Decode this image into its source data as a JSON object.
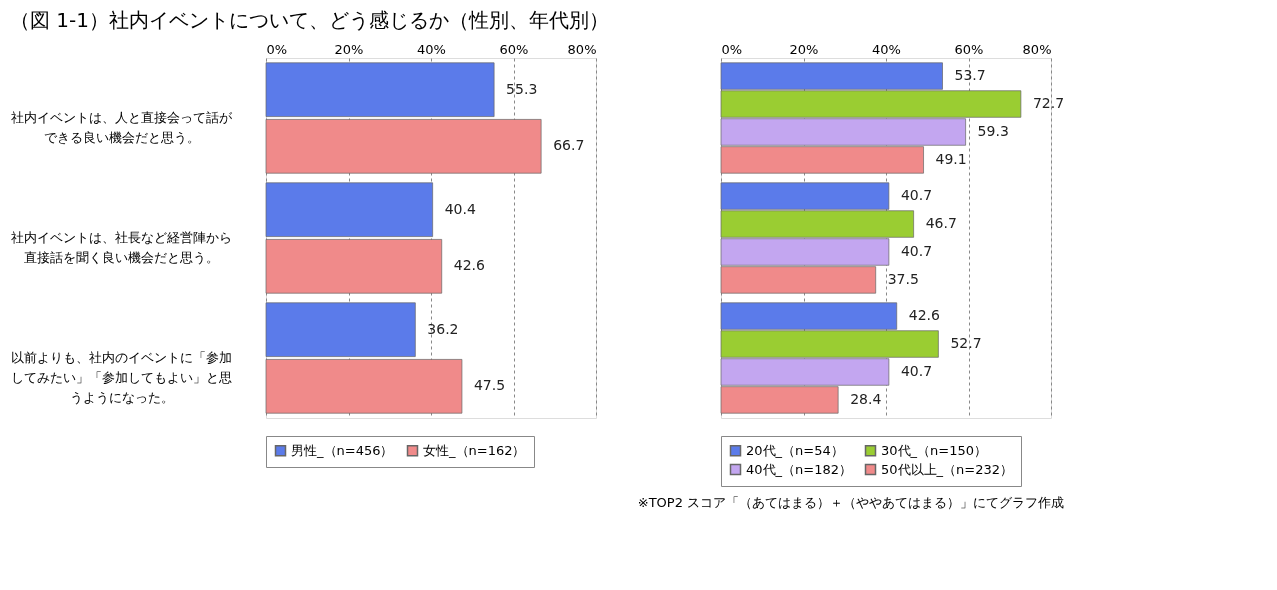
{
  "chart_data": [
    {
      "type": "bar",
      "orientation": "horizontal",
      "title": "（図 1-1）社内イベントについて、どう感じるか（性別、年代別）",
      "categories": [
        "社内イベントは、人と直接会って話ができる良い機会だと思う。",
        "社内イベントは、社長など経営陣から直接話を聞く良い機会だと思う。",
        "以前よりも、社内のイベントに「参加してみたい」「参加してもよい」と思うようになった。"
      ],
      "series": [
        {
          "name": "男性_（n=456）",
          "color": "#5b7bea",
          "values": [
            55.3,
            40.4,
            36.2
          ]
        },
        {
          "name": "女性_（n=162）",
          "color": "#f08a8a",
          "values": [
            66.7,
            42.6,
            47.5
          ]
        }
      ],
      "xlim": [
        0,
        80
      ],
      "xticks": [
        {
          "value": 0,
          "label": "0%"
        },
        {
          "value": 20,
          "label": "20%"
        },
        {
          "value": 40,
          "label": "40%"
        },
        {
          "value": 60,
          "label": "60%"
        },
        {
          "value": 80,
          "label": "80%"
        }
      ],
      "data_labels": true,
      "grid": "x",
      "legend": "bottom"
    },
    {
      "type": "bar",
      "orientation": "horizontal",
      "tick_labels": "x",
      "categories": [
        null,
        null,
        null
      ],
      "series": [
        {
          "name": "20代_（n=54）",
          "color": "#5b7bea",
          "values": [
            53.7,
            40.7,
            42.6
          ]
        },
        {
          "name": "30代_（n=150）",
          "color": "#9acd32",
          "values": [
            72.7,
            46.7,
            52.7
          ]
        },
        {
          "name": "40代_（n=182）",
          "color": "#c3a6f0",
          "values": [
            59.3,
            40.7,
            40.7
          ]
        },
        {
          "name": "50代以上_（n=232）",
          "color": "#f08a8a",
          "values": [
            49.1,
            37.5,
            28.4
          ]
        }
      ],
      "xlim": [
        0,
        80
      ],
      "xticks": [
        {
          "value": 0,
          "label": "0%"
        },
        {
          "value": 20,
          "label": "20%"
        },
        {
          "value": 40,
          "label": "40%"
        },
        {
          "value": 60,
          "label": "60%"
        },
        {
          "value": 80,
          "label": "80%"
        }
      ],
      "data_labels": true,
      "grid": "x",
      "legend": "bottom",
      "annotations": [
        "※TOP2 スコア「（あてはまる）＋（ややあてはまる）」にてグラフ作成"
      ]
    }
  ]
}
